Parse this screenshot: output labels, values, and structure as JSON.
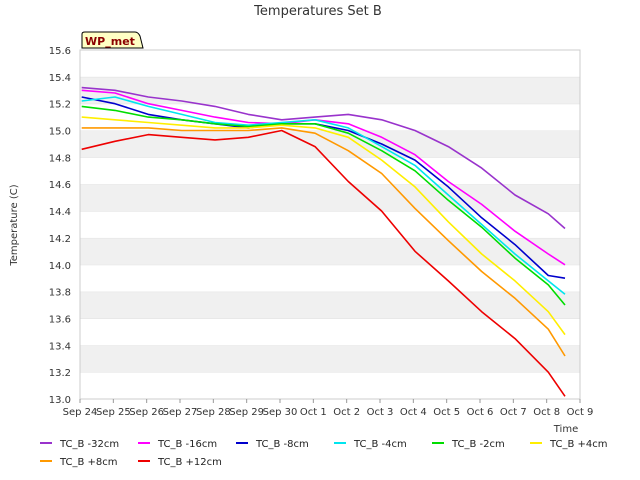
{
  "chart_data": {
    "type": "line",
    "title": "Temperatures Set B",
    "xlabel": "Time",
    "ylabel": "Temperature (C)",
    "ylim": [
      13.0,
      15.6
    ],
    "yticks": [
      "13.0",
      "13.2",
      "13.4",
      "13.6",
      "13.8",
      "14.0",
      "14.2",
      "14.4",
      "14.6",
      "14.8",
      "15.0",
      "15.2",
      "15.4",
      "15.6"
    ],
    "xticks": [
      "Sep 24",
      "Sep 25",
      "Sep 26",
      "Sep 27",
      "Sep 28",
      "Sep 29",
      "Sep 30",
      "Oct 1",
      "Oct 2",
      "Oct 3",
      "Oct 4",
      "Oct 5",
      "Oct 6",
      "Oct 7",
      "Oct 8",
      "Oct 9"
    ],
    "grid": "horizontal alternating bands",
    "legend_position": "bottom",
    "badge": "WP_met",
    "x": [
      "Sep 24",
      "Sep 25",
      "Sep 26",
      "Sep 27",
      "Sep 28",
      "Sep 29",
      "Sep 30",
      "Oct 1",
      "Oct 2",
      "Oct 3",
      "Oct 4",
      "Oct 5",
      "Oct 6",
      "Oct 7",
      "Oct 8",
      "Oct 8 12:00"
    ],
    "series": [
      {
        "name": "TC_B -32cm",
        "color": "#9933cc",
        "values": [
          15.32,
          15.3,
          15.25,
          15.22,
          15.18,
          15.12,
          15.08,
          15.1,
          15.12,
          15.08,
          15.0,
          14.88,
          14.72,
          14.52,
          14.38,
          14.27
        ]
      },
      {
        "name": "TC_B -16cm",
        "color": "#ff00ff",
        "values": [
          15.3,
          15.28,
          15.2,
          15.15,
          15.1,
          15.06,
          15.05,
          15.08,
          15.05,
          14.95,
          14.82,
          14.62,
          14.45,
          14.25,
          14.08,
          14.0
        ]
      },
      {
        "name": "TC_B -8cm",
        "color": "#0000cc",
        "values": [
          15.25,
          15.2,
          15.12,
          15.08,
          15.05,
          15.02,
          15.05,
          15.05,
          15.0,
          14.9,
          14.78,
          14.58,
          14.35,
          14.15,
          13.92,
          13.9
        ]
      },
      {
        "name": "TC_B -4cm",
        "color": "#00e5ee",
        "values": [
          15.22,
          15.25,
          15.18,
          15.12,
          15.06,
          15.04,
          15.06,
          15.08,
          15.02,
          14.88,
          14.74,
          14.52,
          14.3,
          14.08,
          13.88,
          13.78
        ]
      },
      {
        "name": "TC_B -2cm",
        "color": "#00dd00",
        "values": [
          15.18,
          15.15,
          15.1,
          15.08,
          15.05,
          15.03,
          15.05,
          15.05,
          14.98,
          14.85,
          14.7,
          14.48,
          14.28,
          14.05,
          13.85,
          13.7
        ]
      },
      {
        "name": "TC_B +4cm",
        "color": "#ffee00",
        "values": [
          15.1,
          15.08,
          15.06,
          15.04,
          15.02,
          15.02,
          15.04,
          15.02,
          14.95,
          14.78,
          14.58,
          14.32,
          14.08,
          13.88,
          13.65,
          13.48
        ]
      },
      {
        "name": "TC_B +8cm",
        "color": "#ff9900",
        "values": [
          15.02,
          15.02,
          15.02,
          15.0,
          15.0,
          15.0,
          15.02,
          14.98,
          14.85,
          14.68,
          14.42,
          14.18,
          13.95,
          13.75,
          13.52,
          13.32
        ]
      },
      {
        "name": "TC_B +12cm",
        "color": "#ee0000",
        "values": [
          14.86,
          14.92,
          14.97,
          14.95,
          14.93,
          14.95,
          15.0,
          14.88,
          14.62,
          14.4,
          14.1,
          13.88,
          13.65,
          13.45,
          13.2,
          13.02
        ]
      }
    ]
  }
}
